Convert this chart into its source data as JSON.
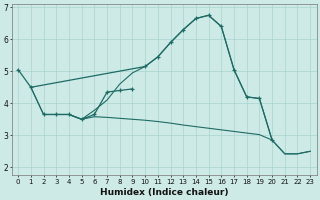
{
  "xlabel": "Humidex (Indice chaleur)",
  "bg_color": "#ceeae6",
  "grid_color": "#aad4ce",
  "line_color": "#1e6b65",
  "xlim": [
    -0.5,
    23.5
  ],
  "ylim": [
    1.75,
    7.1
  ],
  "yticks": [
    2,
    3,
    4,
    5,
    6,
    7
  ],
  "xticks": [
    0,
    1,
    2,
    3,
    4,
    5,
    6,
    7,
    8,
    9,
    10,
    11,
    12,
    13,
    14,
    15,
    16,
    17,
    18,
    19,
    20,
    21,
    22,
    23
  ],
  "curve1_x": [
    0,
    1,
    10,
    11,
    12,
    13,
    14,
    15,
    16,
    17,
    18,
    19,
    20
  ],
  "curve1_y": [
    5.05,
    4.5,
    5.15,
    5.45,
    5.9,
    6.3,
    6.65,
    6.75,
    6.4,
    5.05,
    4.2,
    4.15,
    2.85
  ],
  "curve2_x": [
    2,
    3,
    4,
    5,
    6,
    7,
    8,
    9
  ],
  "curve2_y": [
    3.65,
    3.65,
    3.65,
    3.5,
    3.65,
    4.35,
    4.4,
    4.45
  ],
  "line3_x": [
    1,
    2,
    3,
    4,
    5,
    6,
    7,
    8,
    9,
    10,
    11,
    12,
    13,
    14,
    15,
    16,
    17,
    18,
    19,
    20,
    21,
    22,
    23
  ],
  "line3_y": [
    4.5,
    3.65,
    3.65,
    3.65,
    3.5,
    3.58,
    3.56,
    3.53,
    3.5,
    3.47,
    3.43,
    3.38,
    3.32,
    3.27,
    3.22,
    3.17,
    3.12,
    3.07,
    3.02,
    2.85,
    2.42,
    2.42,
    2.5
  ],
  "line4_x": [
    1,
    2,
    3,
    4,
    5,
    6,
    7,
    8,
    9,
    10,
    11,
    12,
    13,
    14,
    15,
    16,
    17,
    18,
    19,
    20,
    21,
    22,
    23
  ],
  "line4_y": [
    4.5,
    3.65,
    3.65,
    3.65,
    3.5,
    3.78,
    4.1,
    4.6,
    4.95,
    5.15,
    5.45,
    5.9,
    6.3,
    6.65,
    6.75,
    6.4,
    5.05,
    4.2,
    4.15,
    2.85,
    2.42,
    2.42,
    2.5
  ]
}
